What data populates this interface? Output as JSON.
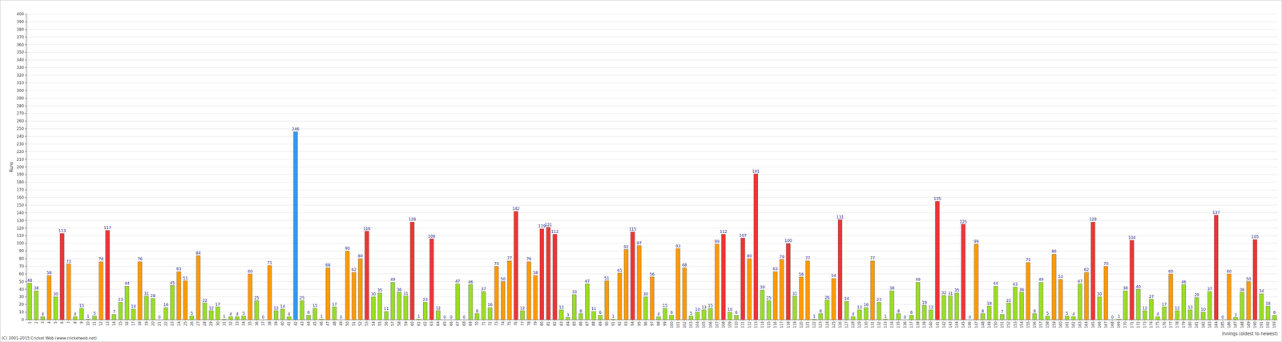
{
  "chart_data": {
    "type": "bar",
    "y_label": "Runs",
    "x_label": "Innings (oldest to newest)",
    "annotations": [
      "(C) 2001-2015 Cricket Web (www.cricketweb.net)"
    ],
    "categories": [
      "1",
      "2",
      "3",
      "4",
      "5",
      "6",
      "7",
      "8",
      "9",
      "10",
      "11",
      "12",
      "13",
      "14",
      "15",
      "16",
      "17",
      "18",
      "19",
      "20",
      "21",
      "22",
      "23",
      "24",
      "25",
      "26",
      "27",
      "28",
      "29",
      "30",
      "31",
      "32",
      "33",
      "34",
      "35",
      "36",
      "37",
      "38",
      "39",
      "40",
      "41",
      "42",
      "43",
      "44",
      "45",
      "46",
      "47",
      "48",
      "49",
      "50",
      "51",
      "52",
      "53",
      "54",
      "55",
      "56",
      "57",
      "58",
      "59",
      "60",
      "61",
      "62",
      "63",
      "64",
      "65",
      "66",
      "67",
      "68",
      "69",
      "70",
      "71",
      "72",
      "73",
      "74",
      "75",
      "76",
      "77",
      "78",
      "79",
      "80",
      "81",
      "82",
      "83",
      "84",
      "85",
      "86",
      "87",
      "88",
      "89",
      "90",
      "91",
      "92",
      "93",
      "94",
      "95",
      "96",
      "97",
      "98",
      "99",
      "100",
      "101",
      "102",
      "103",
      "104",
      "105",
      "106",
      "107",
      "108",
      "109",
      "110",
      "111",
      "112",
      "113",
      "114",
      "115",
      "116",
      "117",
      "118",
      "119",
      "120",
      "121",
      "122",
      "123",
      "124",
      "125",
      "126",
      "127",
      "128",
      "129",
      "130",
      "131",
      "132",
      "133",
      "134",
      "135",
      "136",
      "137",
      "138",
      "139",
      "140",
      "141",
      "142",
      "143",
      "144",
      "145",
      "146",
      "147",
      "148",
      "149",
      "150",
      "151",
      "152",
      "153",
      "154",
      "155",
      "156",
      "157",
      "158",
      "159",
      "160",
      "161",
      "162",
      "163",
      "164",
      "165",
      "166",
      "167",
      "168",
      "169",
      "170",
      "171",
      "172",
      "173",
      "174",
      "175",
      "176",
      "177",
      "178",
      "179",
      "180",
      "181",
      "182",
      "183",
      "184",
      "185",
      "186",
      "187",
      "188",
      "189",
      "190",
      "191",
      "192",
      "193"
    ],
    "values": [
      48,
      38,
      4,
      58,
      30,
      113,
      73,
      4,
      15,
      1,
      5,
      76,
      117,
      7,
      23,
      44,
      14,
      76,
      31,
      28,
      0,
      16,
      45,
      63,
      51,
      5,
      84,
      22,
      12,
      17,
      1,
      4,
      4,
      5,
      60,
      25,
      0,
      71,
      12,
      14,
      4,
      246,
      25,
      6,
      15,
      1,
      68,
      17,
      0,
      90,
      62,
      80,
      116,
      30,
      35,
      11,
      49,
      36,
      31,
      128,
      1,
      23,
      106,
      12,
      0,
      0,
      47,
      0,
      46,
      8,
      37,
      16,
      70,
      50,
      77,
      142,
      12,
      76,
      58,
      119,
      121,
      112,
      13,
      3,
      33,
      8,
      47,
      11,
      6,
      51,
      1,
      61,
      92,
      115,
      97,
      30,
      56,
      4,
      15,
      6,
      93,
      68,
      5,
      10,
      13,
      15,
      99,
      112,
      10,
      6,
      107,
      80,
      191,
      39,
      25,
      63,
      79,
      100,
      31,
      56,
      77,
      1,
      8,
      26,
      54,
      131,
      24,
      4,
      13,
      16,
      77,
      23,
      1,
      38,
      8,
      0,
      6,
      49,
      19,
      13,
      155,
      32,
      31,
      35,
      125,
      0,
      99,
      8,
      18,
      44,
      7,
      22,
      43,
      36,
      75,
      8,
      49,
      5,
      86,
      53,
      5,
      4,
      47,
      62,
      128,
      30,
      70,
      0,
      1,
      38,
      104,
      40,
      12,
      27,
      4,
      17,
      60,
      12,
      46,
      13,
      29,
      10,
      37,
      137,
      0,
      60,
      3,
      36,
      50,
      105,
      34,
      18,
      6
    ],
    "colors": [
      "#99dd22",
      "#99dd22",
      "#99dd22",
      "#ff9900",
      "#99dd22",
      "#ee3333",
      "#ff9900",
      "#99dd22",
      "#99dd22",
      "#99dd22",
      "#99dd22",
      "#ff9900",
      "#ee3333",
      "#99dd22",
      "#99dd22",
      "#99dd22",
      "#99dd22",
      "#ff9900",
      "#99dd22",
      "#99dd22",
      "#99dd22",
      "#99dd22",
      "#99dd22",
      "#ff9900",
      "#ff9900",
      "#99dd22",
      "#ff9900",
      "#99dd22",
      "#99dd22",
      "#99dd22",
      "#99dd22",
      "#99dd22",
      "#99dd22",
      "#99dd22",
      "#ff9900",
      "#99dd22",
      "#99dd22",
      "#ff9900",
      "#99dd22",
      "#99dd22",
      "#99dd22",
      "#3399ee",
      "#99dd22",
      "#99dd22",
      "#99dd22",
      "#99dd22",
      "#ff9900",
      "#99dd22",
      "#99dd22",
      "#ff9900",
      "#ff9900",
      "#ff9900",
      "#ee3333",
      "#99dd22",
      "#99dd22",
      "#99dd22",
      "#99dd22",
      "#99dd22",
      "#99dd22",
      "#ee3333",
      "#99dd22",
      "#99dd22",
      "#ee3333",
      "#99dd22",
      "#99dd22",
      "#99dd22",
      "#99dd22",
      "#99dd22",
      "#99dd22",
      "#99dd22",
      "#99dd22",
      "#99dd22",
      "#ff9900",
      "#ff9900",
      "#ff9900",
      "#ee3333",
      "#99dd22",
      "#ff9900",
      "#ff9900",
      "#ee3333",
      "#ee3333",
      "#ee3333",
      "#99dd22",
      "#99dd22",
      "#99dd22",
      "#99dd22",
      "#99dd22",
      "#99dd22",
      "#99dd22",
      "#ff9900",
      "#99dd22",
      "#ff9900",
      "#ff9900",
      "#ee3333",
      "#ff9900",
      "#99dd22",
      "#ff9900",
      "#99dd22",
      "#99dd22",
      "#99dd22",
      "#ff9900",
      "#ff9900",
      "#99dd22",
      "#99dd22",
      "#99dd22",
      "#99dd22",
      "#ff9900",
      "#ee3333",
      "#99dd22",
      "#99dd22",
      "#ee3333",
      "#ff9900",
      "#ee3333",
      "#99dd22",
      "#99dd22",
      "#ff9900",
      "#ff9900",
      "#ee3333",
      "#99dd22",
      "#ff9900",
      "#ff9900",
      "#99dd22",
      "#99dd22",
      "#99dd22",
      "#ff9900",
      "#ee3333",
      "#99dd22",
      "#99dd22",
      "#99dd22",
      "#99dd22",
      "#ff9900",
      "#99dd22",
      "#99dd22",
      "#99dd22",
      "#99dd22",
      "#99dd22",
      "#99dd22",
      "#99dd22",
      "#99dd22",
      "#99dd22",
      "#ee3333",
      "#99dd22",
      "#99dd22",
      "#99dd22",
      "#ee3333",
      "#99dd22",
      "#ff9900",
      "#99dd22",
      "#99dd22",
      "#99dd22",
      "#99dd22",
      "#99dd22",
      "#99dd22",
      "#99dd22",
      "#ff9900",
      "#99dd22",
      "#99dd22",
      "#99dd22",
      "#ff9900",
      "#ff9900",
      "#99dd22",
      "#99dd22",
      "#99dd22",
      "#ff9900",
      "#ee3333",
      "#99dd22",
      "#ff9900",
      "#99dd22",
      "#99dd22",
      "#99dd22",
      "#ee3333",
      "#99dd22",
      "#99dd22",
      "#99dd22",
      "#99dd22",
      "#99dd22",
      "#ff9900",
      "#99dd22",
      "#99dd22",
      "#99dd22",
      "#99dd22",
      "#99dd22",
      "#99dd22",
      "#ee3333",
      "#99dd22",
      "#ff9900",
      "#99dd22",
      "#99dd22",
      "#ff9900",
      "#ee3333",
      "#99dd22",
      "#99dd22",
      "#99dd22"
    ],
    "ylim": [
      0,
      400
    ],
    "yticks": [
      0,
      10,
      20,
      30,
      40,
      50,
      60,
      70,
      80,
      90,
      100,
      110,
      120,
      130,
      140,
      150,
      160,
      170,
      180,
      190,
      200,
      210,
      220,
      230,
      240,
      250,
      260,
      270,
      280,
      290,
      300,
      310,
      320,
      330,
      340,
      350,
      360,
      370,
      380,
      390,
      400
    ],
    "grid": true,
    "data_labels": true
  }
}
